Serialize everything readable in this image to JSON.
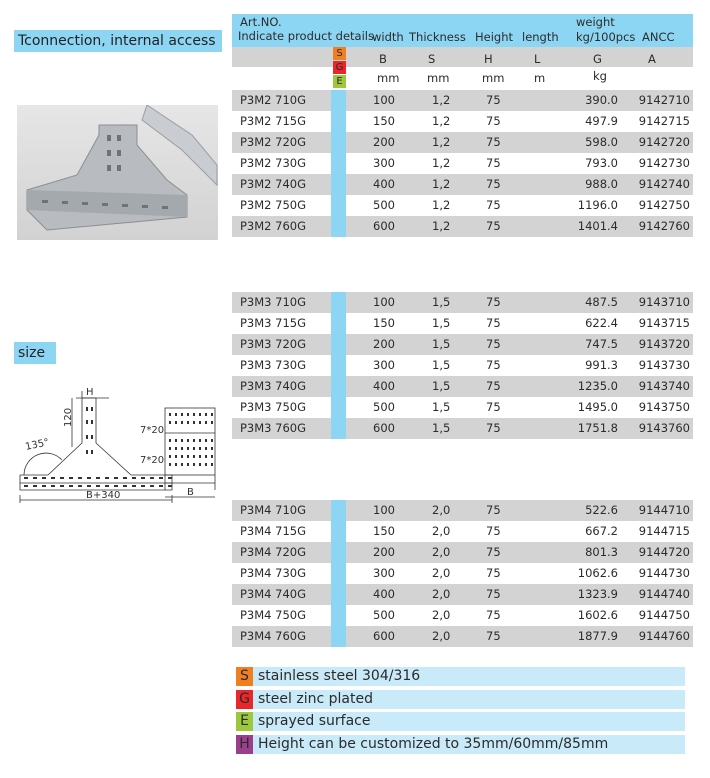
{
  "title": "Tconnection, internal access",
  "size_label": "size",
  "header": {
    "art_no": "Art.NO.",
    "indicate": "Indicate product details",
    "width": "width",
    "thickness": "Thickness",
    "height": "Height",
    "length": "length",
    "weight1": "weight",
    "weight2": "kg/100pcs",
    "ancc": "ANCC",
    "sym": {
      "b": "B",
      "s": "S",
      "h": "H",
      "l": "L",
      "g": "G",
      "a": "A"
    },
    "units": {
      "b": "mm",
      "s": "mm",
      "h": "mm",
      "l": "m",
      "g": "kg"
    },
    "badges": [
      "S",
      "G",
      "E"
    ]
  },
  "colors": {
    "S": "#f07f22",
    "G": "#e8262b",
    "E": "#9dc83b",
    "H": "#9b3f8c",
    "accent": "#8dd6f3"
  },
  "drawing": {
    "h": "H",
    "dim120": "120",
    "angle": "135°",
    "hole1": "7*20",
    "hole2": "7*20",
    "base": "B+340",
    "b": "B"
  },
  "tables": [
    {
      "rows": [
        [
          "P3M2 710G",
          "100",
          "1,2",
          "75",
          "390.0",
          "9142710"
        ],
        [
          "P3M2 715G",
          "150",
          "1,2",
          "75",
          "497.9",
          "9142715"
        ],
        [
          "P3M2 720G",
          "200",
          "1,2",
          "75",
          "598.0",
          "9142720"
        ],
        [
          "P3M2 730G",
          "300",
          "1,2",
          "75",
          "793.0",
          "9142730"
        ],
        [
          "P3M2 740G",
          "400",
          "1,2",
          "75",
          "988.0",
          "9142740"
        ],
        [
          "P3M2 750G",
          "500",
          "1,2",
          "75",
          "1196.0",
          "9142750"
        ],
        [
          "P3M2 760G",
          "600",
          "1,2",
          "75",
          "1401.4",
          "9142760"
        ]
      ]
    },
    {
      "rows": [
        [
          "P3M3 710G",
          "100",
          "1,5",
          "75",
          "487.5",
          "9143710"
        ],
        [
          "P3M3 715G",
          "150",
          "1,5",
          "75",
          "622.4",
          "9143715"
        ],
        [
          "P3M3 720G",
          "200",
          "1,5",
          "75",
          "747.5",
          "9143720"
        ],
        [
          "P3M3 730G",
          "300",
          "1,5",
          "75",
          "991.3",
          "9143730"
        ],
        [
          "P3M3 740G",
          "400",
          "1,5",
          "75",
          "1235.0",
          "9143740"
        ],
        [
          "P3M3 750G",
          "500",
          "1,5",
          "75",
          "1495.0",
          "9143750"
        ],
        [
          "P3M3 760G",
          "600",
          "1,5",
          "75",
          "1751.8",
          "9143760"
        ]
      ]
    },
    {
      "rows": [
        [
          "P3M4 710G",
          "100",
          "2,0",
          "75",
          "522.6",
          "9144710"
        ],
        [
          "P3M4 715G",
          "150",
          "2,0",
          "75",
          "667.2",
          "9144715"
        ],
        [
          "P3M4 720G",
          "200",
          "2,0",
          "75",
          "801.3",
          "9144720"
        ],
        [
          "P3M4 730G",
          "300",
          "2,0",
          "75",
          "1062.6",
          "9144730"
        ],
        [
          "P3M4 740G",
          "400",
          "2,0",
          "75",
          "1323.9",
          "9144740"
        ],
        [
          "P3M4 750G",
          "500",
          "2,0",
          "75",
          "1602.6",
          "9144750"
        ],
        [
          "P3M4 760G",
          "600",
          "2,0",
          "75",
          "1877.9",
          "9144760"
        ]
      ]
    }
  ],
  "legend": [
    {
      "key": "S",
      "text": "stainless steel 304/316"
    },
    {
      "key": "G",
      "text": "steel zinc plated"
    },
    {
      "key": "E",
      "text": "sprayed surface"
    },
    {
      "key": "H",
      "text": "Height can be customized to 35mm/60mm/85mm"
    }
  ]
}
